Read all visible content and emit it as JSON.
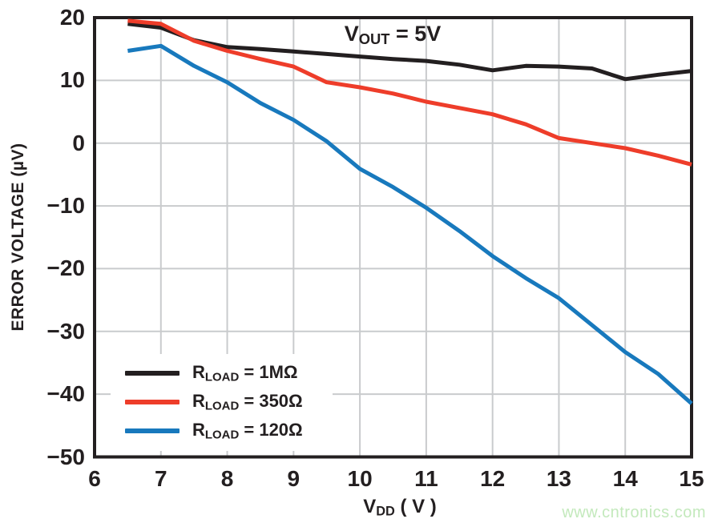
{
  "watermark": {
    "text": "www.cntronics.com",
    "color": "#c3e9bc"
  },
  "chart_data": {
    "type": "line",
    "title": "",
    "annotation": {
      "prefix": "V",
      "sub": "OUT",
      "rest": " = 5V"
    },
    "xlabel": {
      "prefix": "V",
      "sub": "DD",
      "rest": " ( V )"
    },
    "ylabel": "ERROR VOLTAGE (µV)",
    "xlim": [
      6,
      15
    ],
    "ylim": [
      -50,
      20
    ],
    "x_ticks": [
      6,
      7,
      8,
      9,
      10,
      11,
      12,
      13,
      14,
      15
    ],
    "y_ticks": [
      20,
      10,
      0,
      -10,
      -20,
      -30,
      -40,
      -50
    ],
    "grid": true,
    "legend_position": "bottom-left",
    "x": [
      6.5,
      7,
      7.5,
      8,
      8.5,
      9,
      9.5,
      10,
      10.5,
      11,
      11.5,
      12,
      12.5,
      13,
      13.5,
      14,
      14.5,
      15
    ],
    "series": [
      {
        "key": "1mohm",
        "label_prefix": "R",
        "label_sub": "LOAD",
        "label_rest": " = 1MΩ",
        "color": "#231f20",
        "values": [
          19.0,
          18.4,
          16.4,
          15.3,
          15.0,
          14.6,
          14.2,
          13.8,
          13.4,
          13.1,
          12.5,
          11.6,
          12.3,
          12.2,
          11.9,
          10.2,
          10.9,
          11.5
        ]
      },
      {
        "key": "350ohm",
        "label_prefix": "R",
        "label_sub": "LOAD",
        "label_rest": " = 350Ω",
        "color": "#ee3d2a",
        "values": [
          19.5,
          19.0,
          16.3,
          14.7,
          13.4,
          12.2,
          9.7,
          8.9,
          7.9,
          6.6,
          5.6,
          4.6,
          3.0,
          0.8,
          0.0,
          -0.8,
          -2.0,
          -3.4
        ]
      },
      {
        "key": "120ohm",
        "label_prefix": "R",
        "label_sub": "LOAD",
        "label_rest": " = 120Ω",
        "color": "#1879bd",
        "values": [
          14.7,
          15.5,
          12.3,
          9.7,
          6.4,
          3.7,
          0.3,
          -4.1,
          -7.0,
          -10.3,
          -14.0,
          -18.0,
          -21.5,
          -24.7,
          -29.0,
          -33.3,
          -36.8,
          -41.5
        ]
      }
    ],
    "colors": {
      "grid": "#c9cbcd",
      "axis": "#231f20",
      "background": "#ffffff"
    }
  }
}
